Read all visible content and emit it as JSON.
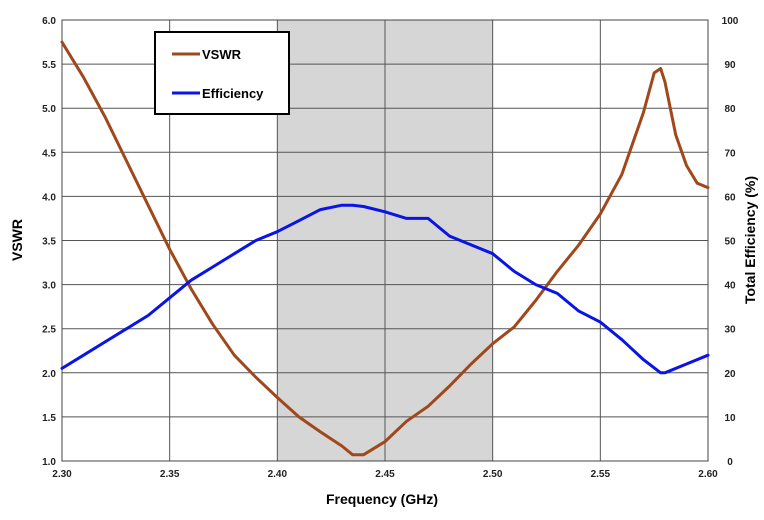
{
  "chart_data": {
    "type": "line",
    "xlabel": "Frequency (GHz)",
    "ylabel": "VSWR",
    "y2label": "Total Efficiency (%)",
    "xlim": [
      2.3,
      2.6
    ],
    "ylim": [
      1.0,
      6.0
    ],
    "y2lim": [
      0,
      100
    ],
    "x_ticks": [
      "2.30",
      "2.35",
      "2.40",
      "2.45",
      "2.50",
      "2.55",
      "2.60"
    ],
    "y_ticks": [
      "1.0",
      "1.5",
      "2.0",
      "2.5",
      "3.0",
      "3.5",
      "4.0",
      "4.5",
      "5.0",
      "5.5",
      "6.0"
    ],
    "y2_ticks": [
      "0",
      "10",
      "20",
      "30",
      "40",
      "50",
      "60",
      "70",
      "80",
      "90",
      "100"
    ],
    "grid": true,
    "legend_position": "top-left",
    "shaded_band": [
      2.4,
      2.5
    ],
    "series": [
      {
        "name": "VSWR",
        "axis": "left",
        "color": "#A0481C",
        "x": [
          2.3,
          2.31,
          2.32,
          2.33,
          2.34,
          2.35,
          2.36,
          2.37,
          2.38,
          2.39,
          2.4,
          2.41,
          2.42,
          2.43,
          2.435,
          2.44,
          2.45,
          2.46,
          2.47,
          2.48,
          2.49,
          2.5,
          2.51,
          2.52,
          2.53,
          2.54,
          2.55,
          2.56,
          2.57,
          2.575,
          2.578,
          2.58,
          2.585,
          2.59,
          2.595,
          2.6
        ],
        "values": [
          5.75,
          5.35,
          4.9,
          4.4,
          3.9,
          3.4,
          2.95,
          2.55,
          2.2,
          1.95,
          1.72,
          1.5,
          1.33,
          1.17,
          1.07,
          1.07,
          1.22,
          1.45,
          1.62,
          1.85,
          2.1,
          2.33,
          2.52,
          2.82,
          3.15,
          3.45,
          3.8,
          4.25,
          4.95,
          5.4,
          5.45,
          5.3,
          4.7,
          4.35,
          4.15,
          4.1
        ]
      },
      {
        "name": "Efficiency",
        "axis": "right",
        "color": "#0A14E6",
        "x": [
          2.3,
          2.31,
          2.32,
          2.33,
          2.34,
          2.35,
          2.36,
          2.37,
          2.38,
          2.39,
          2.4,
          2.41,
          2.42,
          2.43,
          2.435,
          2.44,
          2.45,
          2.46,
          2.47,
          2.48,
          2.49,
          2.5,
          2.51,
          2.52,
          2.53,
          2.54,
          2.55,
          2.56,
          2.57,
          2.578,
          2.58,
          2.59,
          2.6
        ],
        "values": [
          21,
          24,
          27,
          30,
          33,
          37,
          41,
          44,
          47,
          50,
          52,
          54.5,
          57,
          58,
          58,
          57.7,
          56.5,
          55,
          55,
          51,
          49,
          47,
          43,
          40,
          38,
          34,
          31.5,
          27.5,
          23,
          20,
          20,
          22,
          24
        ]
      }
    ]
  }
}
